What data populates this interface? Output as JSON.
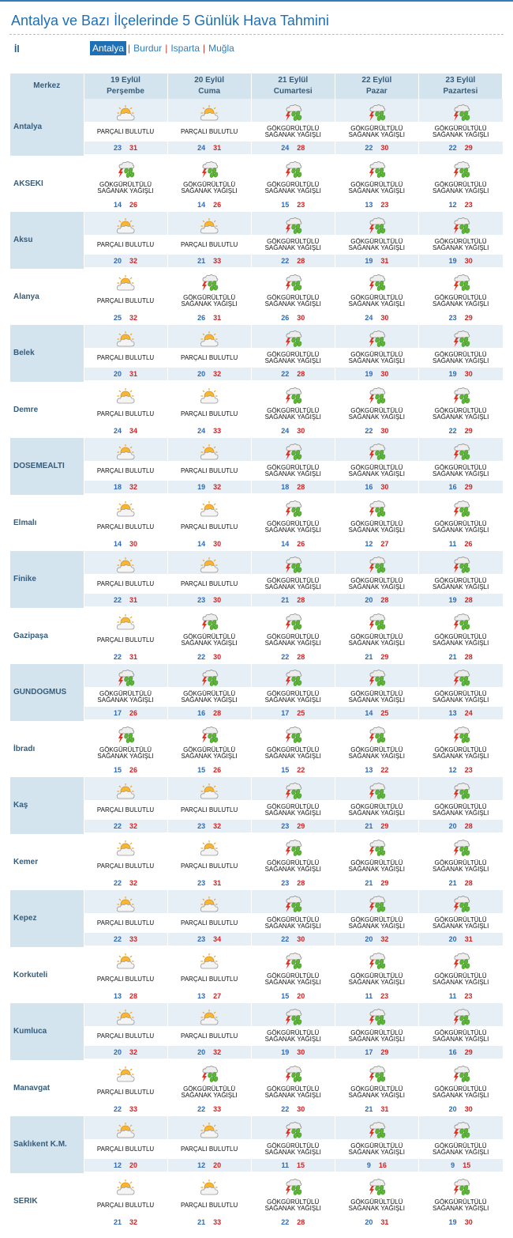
{
  "page": {
    "title": "Antalya ve Bazı İlçelerinde 5 Günlük Hava Tahmini",
    "il_label": "İl",
    "provinces": [
      {
        "name": "Antalya",
        "active": true
      },
      {
        "name": "Burdur",
        "active": false
      },
      {
        "name": "Isparta",
        "active": false
      },
      {
        "name": "Muğla",
        "active": false
      }
    ],
    "separator": "|"
  },
  "table": {
    "header_center": "Merkez",
    "days": [
      {
        "date": "19 Eylül",
        "weekday": "Perşembe"
      },
      {
        "date": "20 Eylül",
        "weekday": "Cuma"
      },
      {
        "date": "21 Eylül",
        "weekday": "Cumartesi"
      },
      {
        "date": "22 Eylül",
        "weekday": "Pazar"
      },
      {
        "date": "23 Eylül",
        "weekday": "Pazartesi"
      }
    ],
    "conditions": {
      "P": {
        "icon": "partly-cloudy-icon",
        "text": "PARÇALI BULUTLU"
      },
      "G": {
        "icon": "thunderstorm-rain-icon",
        "text": "GÖKGÜRÜLTÜLÜ\nSAĞANAK YAĞIŞLI"
      }
    },
    "rows": [
      {
        "city": "Antalya",
        "days": [
          [
            "P",
            23,
            31
          ],
          [
            "P",
            24,
            31
          ],
          [
            "G",
            24,
            28
          ],
          [
            "G",
            22,
            30
          ],
          [
            "G",
            22,
            29
          ]
        ]
      },
      {
        "city": "AKSEKI",
        "days": [
          [
            "G",
            14,
            26
          ],
          [
            "G",
            14,
            26
          ],
          [
            "G",
            15,
            23
          ],
          [
            "G",
            13,
            23
          ],
          [
            "G",
            12,
            23
          ]
        ]
      },
      {
        "city": "Aksu",
        "days": [
          [
            "P",
            20,
            32
          ],
          [
            "P",
            21,
            33
          ],
          [
            "G",
            22,
            28
          ],
          [
            "G",
            19,
            31
          ],
          [
            "G",
            19,
            30
          ]
        ]
      },
      {
        "city": "Alanya",
        "days": [
          [
            "P",
            25,
            32
          ],
          [
            "G",
            26,
            31
          ],
          [
            "G",
            26,
            30
          ],
          [
            "G",
            24,
            30
          ],
          [
            "G",
            23,
            29
          ]
        ]
      },
      {
        "city": "Belek",
        "days": [
          [
            "P",
            20,
            31
          ],
          [
            "P",
            20,
            32
          ],
          [
            "G",
            22,
            28
          ],
          [
            "G",
            19,
            30
          ],
          [
            "G",
            19,
            30
          ]
        ]
      },
      {
        "city": "Demre",
        "days": [
          [
            "P",
            24,
            34
          ],
          [
            "P",
            24,
            33
          ],
          [
            "G",
            24,
            30
          ],
          [
            "G",
            22,
            30
          ],
          [
            "G",
            22,
            29
          ]
        ]
      },
      {
        "city": "DOSEMEALTI",
        "days": [
          [
            "P",
            18,
            32
          ],
          [
            "P",
            19,
            32
          ],
          [
            "G",
            18,
            28
          ],
          [
            "G",
            16,
            30
          ],
          [
            "G",
            16,
            29
          ]
        ]
      },
      {
        "city": "Elmalı",
        "days": [
          [
            "P",
            14,
            30
          ],
          [
            "P",
            14,
            30
          ],
          [
            "G",
            14,
            26
          ],
          [
            "G",
            12,
            27
          ],
          [
            "G",
            11,
            26
          ]
        ]
      },
      {
        "city": "Finike",
        "days": [
          [
            "P",
            22,
            31
          ],
          [
            "P",
            23,
            30
          ],
          [
            "G",
            21,
            28
          ],
          [
            "G",
            20,
            28
          ],
          [
            "G",
            19,
            28
          ]
        ]
      },
      {
        "city": "Gazipaşa",
        "days": [
          [
            "P",
            22,
            31
          ],
          [
            "G",
            22,
            30
          ],
          [
            "G",
            22,
            28
          ],
          [
            "G",
            21,
            29
          ],
          [
            "G",
            21,
            28
          ]
        ]
      },
      {
        "city": "GUNDOGMUS",
        "days": [
          [
            "G",
            17,
            26
          ],
          [
            "G",
            16,
            28
          ],
          [
            "G",
            17,
            25
          ],
          [
            "G",
            14,
            25
          ],
          [
            "G",
            13,
            24
          ]
        ]
      },
      {
        "city": "İbradı",
        "days": [
          [
            "G",
            15,
            26
          ],
          [
            "G",
            15,
            26
          ],
          [
            "G",
            15,
            22
          ],
          [
            "G",
            13,
            22
          ],
          [
            "G",
            12,
            23
          ]
        ]
      },
      {
        "city": "Kaş",
        "days": [
          [
            "P",
            22,
            32
          ],
          [
            "P",
            23,
            32
          ],
          [
            "G",
            23,
            29
          ],
          [
            "G",
            21,
            29
          ],
          [
            "G",
            20,
            28
          ]
        ]
      },
      {
        "city": "Kemer",
        "days": [
          [
            "P",
            22,
            32
          ],
          [
            "P",
            23,
            31
          ],
          [
            "G",
            23,
            28
          ],
          [
            "G",
            21,
            29
          ],
          [
            "G",
            21,
            28
          ]
        ]
      },
      {
        "city": "Kepez",
        "days": [
          [
            "P",
            22,
            33
          ],
          [
            "P",
            23,
            34
          ],
          [
            "G",
            22,
            30
          ],
          [
            "G",
            20,
            32
          ],
          [
            "G",
            20,
            31
          ]
        ]
      },
      {
        "city": "Korkuteli",
        "days": [
          [
            "P",
            13,
            28
          ],
          [
            "P",
            13,
            27
          ],
          [
            "G",
            15,
            20
          ],
          [
            "G",
            11,
            23
          ],
          [
            "G",
            11,
            23
          ]
        ]
      },
      {
        "city": "Kumluca",
        "days": [
          [
            "P",
            20,
            32
          ],
          [
            "P",
            20,
            32
          ],
          [
            "G",
            19,
            30
          ],
          [
            "G",
            17,
            29
          ],
          [
            "G",
            16,
            29
          ]
        ]
      },
      {
        "city": "Manavgat",
        "days": [
          [
            "P",
            22,
            33
          ],
          [
            "G",
            22,
            33
          ],
          [
            "G",
            22,
            30
          ],
          [
            "G",
            21,
            31
          ],
          [
            "G",
            20,
            30
          ]
        ]
      },
      {
        "city": "Saklıkent K.M.",
        "days": [
          [
            "P",
            12,
            20
          ],
          [
            "P",
            12,
            20
          ],
          [
            "G",
            11,
            15
          ],
          [
            "G",
            9,
            16
          ],
          [
            "G",
            9,
            15
          ]
        ]
      },
      {
        "city": "SERIK",
        "days": [
          [
            "P",
            21,
            32
          ],
          [
            "P",
            21,
            33
          ],
          [
            "G",
            22,
            28
          ],
          [
            "G",
            20,
            31
          ],
          [
            "G",
            19,
            30
          ]
        ]
      }
    ]
  },
  "colors": {
    "title": "#1f6fb5",
    "header_bg": "#d3e4ef",
    "row_band": "#e6eff6",
    "temp_min": "#2f6ab3",
    "temp_max": "#d32323",
    "province_active_bg": "#1f6fb5"
  }
}
